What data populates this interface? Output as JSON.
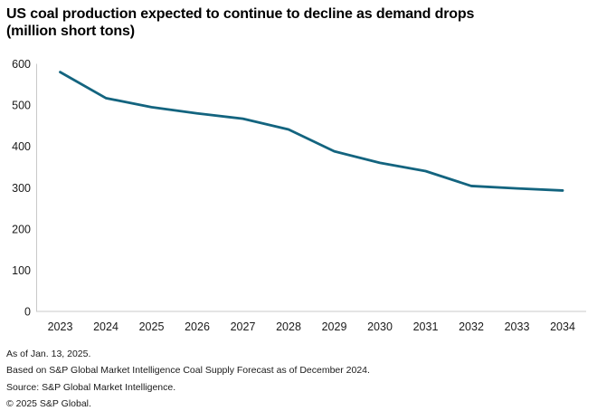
{
  "title": {
    "line1": "US coal production expected to continue to decline as demand drops",
    "line2": "(million short tons)"
  },
  "footnotes": [
    "As of Jan. 13, 2025.",
    "Based on S&P Global Market Intelligence Coal Supply Forecast as of December 2024.",
    "Source: S&P Global Market Intelligence.",
    "© 2025 S&P Global."
  ],
  "chart_data": {
    "type": "line",
    "title": "US coal production expected to continue to decline as demand drops",
    "subtitle": "(million short tons)",
    "xlabel": "",
    "ylabel": "million short tons",
    "categories": [
      "2023",
      "2024",
      "2025",
      "2026",
      "2027",
      "2028",
      "2029",
      "2030",
      "2031",
      "2032",
      "2033",
      "2034"
    ],
    "series": [
      {
        "name": "US coal production",
        "values": [
          580,
          517,
          495,
          480,
          467,
          441,
          388,
          360,
          340,
          304,
          298,
          293
        ]
      }
    ],
    "ylim": [
      0,
      600
    ],
    "yticks": [
      0,
      100,
      200,
      300,
      400,
      500,
      600
    ],
    "grid": false,
    "legend": "none",
    "line_color": "#13647F",
    "axis_color": "#c9c9c9",
    "text_color": "#1a1a1a"
  }
}
